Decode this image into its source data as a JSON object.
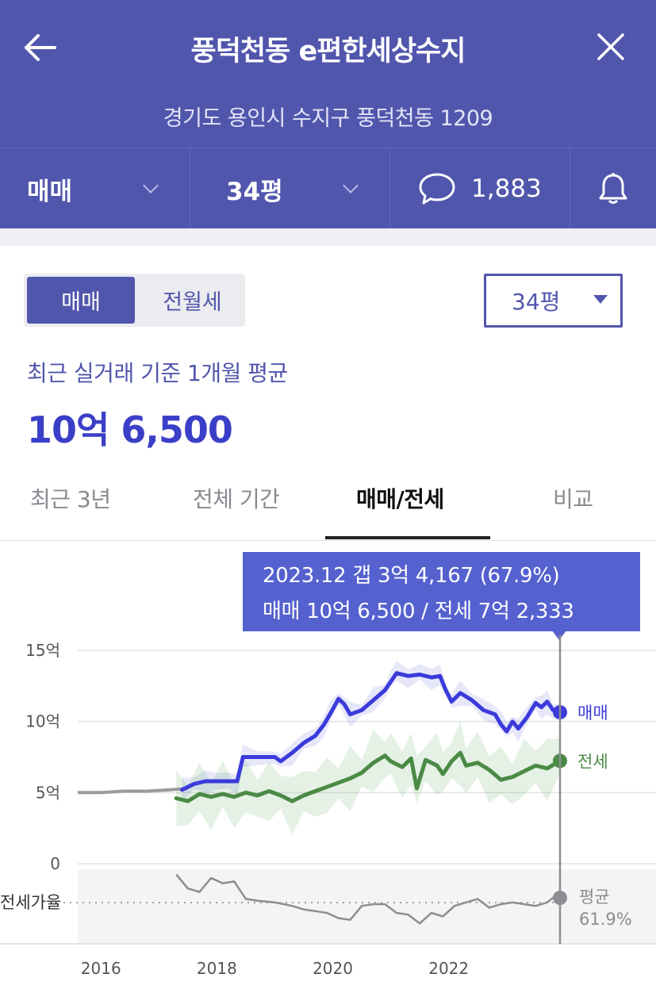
{
  "header": {
    "title": "풍덕천동 e편한세상수지",
    "address": "경기도 용인시 수지구 풍덕천동 1209"
  },
  "subbar": {
    "deal_type": "매매",
    "area": "34평",
    "comment_count": "1,883"
  },
  "toggle": {
    "active": "매매",
    "inactive": "전월세"
  },
  "area_select": {
    "value": "34평"
  },
  "price": {
    "caption": "최근 실거래 기준 1개월 평균",
    "value": "10억 6,500"
  },
  "tabs": [
    {
      "label": "최근 3년",
      "active": false
    },
    {
      "label": "전체 기간",
      "active": false
    },
    {
      "label": "매매/전세",
      "active": true
    },
    {
      "label": "비교",
      "active": false
    }
  ],
  "tooltip": {
    "line1": "2023.12  갭 3억 4,167 (67.9%)",
    "line2": "매매 10억 6,500 / 전세 7억 2,333"
  },
  "colors": {
    "brand": "#5156ad",
    "sale": "#3b3bdb",
    "jeonse": "#4a8a45",
    "ratio": "#888888"
  },
  "chart_data": {
    "type": "line",
    "x_unit": "year",
    "xlim": [
      2015.6,
      2023.95
    ],
    "x_ticks": [
      {
        "v": 2016,
        "label": "2016"
      },
      {
        "v": 2018,
        "label": "2018"
      },
      {
        "v": 2020,
        "label": "2020"
      },
      {
        "v": 2022,
        "label": "2022"
      }
    ],
    "ylim": [
      0,
      15
    ],
    "y_ticks": [
      {
        "v": 0,
        "label": "0"
      },
      {
        "v": 5,
        "label": "5억"
      },
      {
        "v": 10,
        "label": "10억"
      },
      {
        "v": 15,
        "label": "15억"
      }
    ],
    "ratio_label": "전세가율",
    "ratio_avg_label": "평균",
    "ratio_avg_value": "61.9%",
    "series": [
      {
        "name": "매매",
        "color": "#3b3bdb",
        "points": [
          [
            2017.4,
            5.2
          ],
          [
            2017.6,
            5.6
          ],
          [
            2017.8,
            5.8
          ],
          [
            2018.0,
            5.8
          ],
          [
            2018.2,
            5.8
          ],
          [
            2018.35,
            5.8
          ],
          [
            2018.45,
            7.5
          ],
          [
            2018.7,
            7.5
          ],
          [
            2019.0,
            7.5
          ],
          [
            2019.1,
            7.2
          ],
          [
            2019.3,
            7.8
          ],
          [
            2019.5,
            8.5
          ],
          [
            2019.7,
            9.0
          ],
          [
            2019.85,
            9.8
          ],
          [
            2019.95,
            10.5
          ],
          [
            2020.1,
            11.6
          ],
          [
            2020.2,
            11.2
          ],
          [
            2020.3,
            10.5
          ],
          [
            2020.5,
            10.8
          ],
          [
            2020.7,
            11.5
          ],
          [
            2020.9,
            12.2
          ],
          [
            2021.0,
            12.8
          ],
          [
            2021.1,
            13.4
          ],
          [
            2021.3,
            13.2
          ],
          [
            2021.5,
            13.3
          ],
          [
            2021.7,
            13.1
          ],
          [
            2021.85,
            13.2
          ],
          [
            2021.95,
            12.2
          ],
          [
            2022.05,
            11.4
          ],
          [
            2022.2,
            12.0
          ],
          [
            2022.4,
            11.5
          ],
          [
            2022.6,
            10.8
          ],
          [
            2022.8,
            10.5
          ],
          [
            2022.9,
            9.8
          ],
          [
            2023.0,
            9.3
          ],
          [
            2023.1,
            10.0
          ],
          [
            2023.2,
            9.5
          ],
          [
            2023.35,
            10.3
          ],
          [
            2023.5,
            11.3
          ],
          [
            2023.6,
            11.0
          ],
          [
            2023.7,
            11.4
          ],
          [
            2023.8,
            10.8
          ],
          [
            2023.92,
            10.65
          ]
        ]
      },
      {
        "name": "전세",
        "color": "#4a8a45",
        "points": [
          [
            2017.3,
            4.6
          ],
          [
            2017.5,
            4.4
          ],
          [
            2017.7,
            4.9
          ],
          [
            2017.9,
            4.7
          ],
          [
            2018.1,
            4.9
          ],
          [
            2018.3,
            4.7
          ],
          [
            2018.5,
            5.0
          ],
          [
            2018.7,
            4.8
          ],
          [
            2018.9,
            5.1
          ],
          [
            2019.1,
            4.8
          ],
          [
            2019.3,
            4.4
          ],
          [
            2019.5,
            4.8
          ],
          [
            2019.7,
            5.1
          ],
          [
            2019.9,
            5.4
          ],
          [
            2020.1,
            5.7
          ],
          [
            2020.3,
            6.0
          ],
          [
            2020.5,
            6.4
          ],
          [
            2020.7,
            7.1
          ],
          [
            2020.9,
            7.6
          ],
          [
            2021.0,
            7.2
          ],
          [
            2021.2,
            6.8
          ],
          [
            2021.35,
            7.4
          ],
          [
            2021.45,
            5.3
          ],
          [
            2021.6,
            7.3
          ],
          [
            2021.8,
            6.9
          ],
          [
            2021.9,
            6.3
          ],
          [
            2022.05,
            7.2
          ],
          [
            2022.2,
            7.8
          ],
          [
            2022.3,
            6.9
          ],
          [
            2022.5,
            7.1
          ],
          [
            2022.7,
            6.6
          ],
          [
            2022.9,
            5.9
          ],
          [
            2023.1,
            6.1
          ],
          [
            2023.3,
            6.5
          ],
          [
            2023.5,
            6.9
          ],
          [
            2023.7,
            6.7
          ],
          [
            2023.92,
            7.23
          ]
        ]
      }
    ],
    "ratio_series": {
      "name": "전세가율",
      "points": [
        [
          2017.3,
          78
        ],
        [
          2017.5,
          70
        ],
        [
          2017.7,
          68
        ],
        [
          2017.9,
          76
        ],
        [
          2018.1,
          73
        ],
        [
          2018.3,
          74
        ],
        [
          2018.5,
          64
        ],
        [
          2018.7,
          63
        ],
        [
          2019.0,
          62
        ],
        [
          2019.3,
          60
        ],
        [
          2019.5,
          58
        ],
        [
          2019.7,
          57
        ],
        [
          2019.9,
          56
        ],
        [
          2020.1,
          53
        ],
        [
          2020.3,
          52
        ],
        [
          2020.5,
          60
        ],
        [
          2020.7,
          61
        ],
        [
          2020.9,
          61
        ],
        [
          2021.1,
          56
        ],
        [
          2021.3,
          55
        ],
        [
          2021.5,
          50
        ],
        [
          2021.7,
          56
        ],
        [
          2021.9,
          54
        ],
        [
          2022.1,
          60
        ],
        [
          2022.3,
          62
        ],
        [
          2022.5,
          64
        ],
        [
          2022.7,
          59
        ],
        [
          2022.9,
          61
        ],
        [
          2023.1,
          62
        ],
        [
          2023.3,
          61
        ],
        [
          2023.5,
          60
        ],
        [
          2023.7,
          62
        ],
        [
          2023.92,
          67.9
        ]
      ]
    }
  }
}
